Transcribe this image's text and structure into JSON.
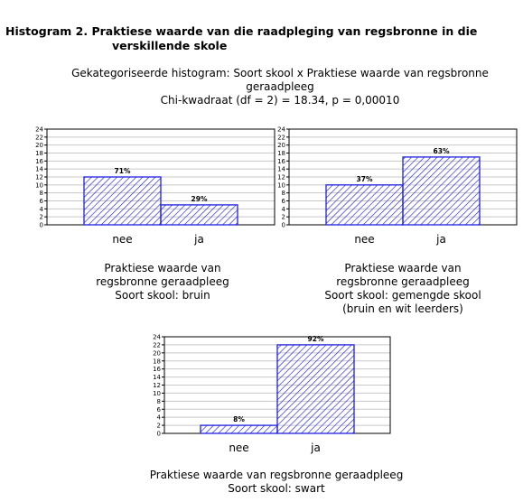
{
  "figure": {
    "title_line1": "Histogram 2. Praktiese waarde van die raadpleging van regsbronne in die",
    "title_line2": "verskillende skole"
  },
  "header": {
    "line1": "Gekategoriseerde histogram: Soort skool x Praktiese waarde van regsbronne",
    "line2": "geraadpleeg",
    "line3": "Chi-kwadraat (df = 2) = 18.34, p = 0,00010"
  },
  "colors": {
    "bar_stroke": "#2020e0",
    "bar_hatch": "#2020e0",
    "grid": "#c8c8c8",
    "plot_border": "#000000"
  },
  "chart_data": [
    {
      "type": "bar",
      "categories": [
        "nee",
        "ja"
      ],
      "values": [
        12,
        5
      ],
      "data_labels": [
        "71%",
        "29%"
      ],
      "yticks": [
        "0",
        "2",
        "4",
        "6",
        "8",
        "10",
        "12",
        "14",
        "16",
        "18",
        "20",
        "22",
        "24"
      ],
      "ylim": [
        0,
        24
      ],
      "grid": true,
      "caption": [
        "Praktiese waarde van",
        "regsbronne geraadpleeg",
        "Soort skool: bruin"
      ]
    },
    {
      "type": "bar",
      "categories": [
        "nee",
        "ja"
      ],
      "values": [
        10,
        17
      ],
      "data_labels": [
        "37%",
        "63%"
      ],
      "yticks": [
        "0",
        "2",
        "4",
        "6",
        "8",
        "10",
        "12",
        "14",
        "16",
        "18",
        "20",
        "22",
        "24"
      ],
      "ylim": [
        0,
        24
      ],
      "grid": true,
      "caption": [
        "Praktiese waarde van",
        "regsbronne geraadpleeg",
        "Soort skool: gemengde skool",
        "(bruin en wit leerders)"
      ]
    },
    {
      "type": "bar",
      "categories": [
        "nee",
        "ja"
      ],
      "values": [
        2,
        22
      ],
      "data_labels": [
        "8%",
        "92%"
      ],
      "yticks": [
        "0",
        "2",
        "4",
        "6",
        "8",
        "10",
        "12",
        "14",
        "16",
        "18",
        "20",
        "22",
        "24"
      ],
      "ylim": [
        0,
        24
      ],
      "grid": true,
      "caption": [
        "Praktiese waarde van regsbronne geraadpleeg",
        "Soort skool: swart"
      ]
    }
  ]
}
